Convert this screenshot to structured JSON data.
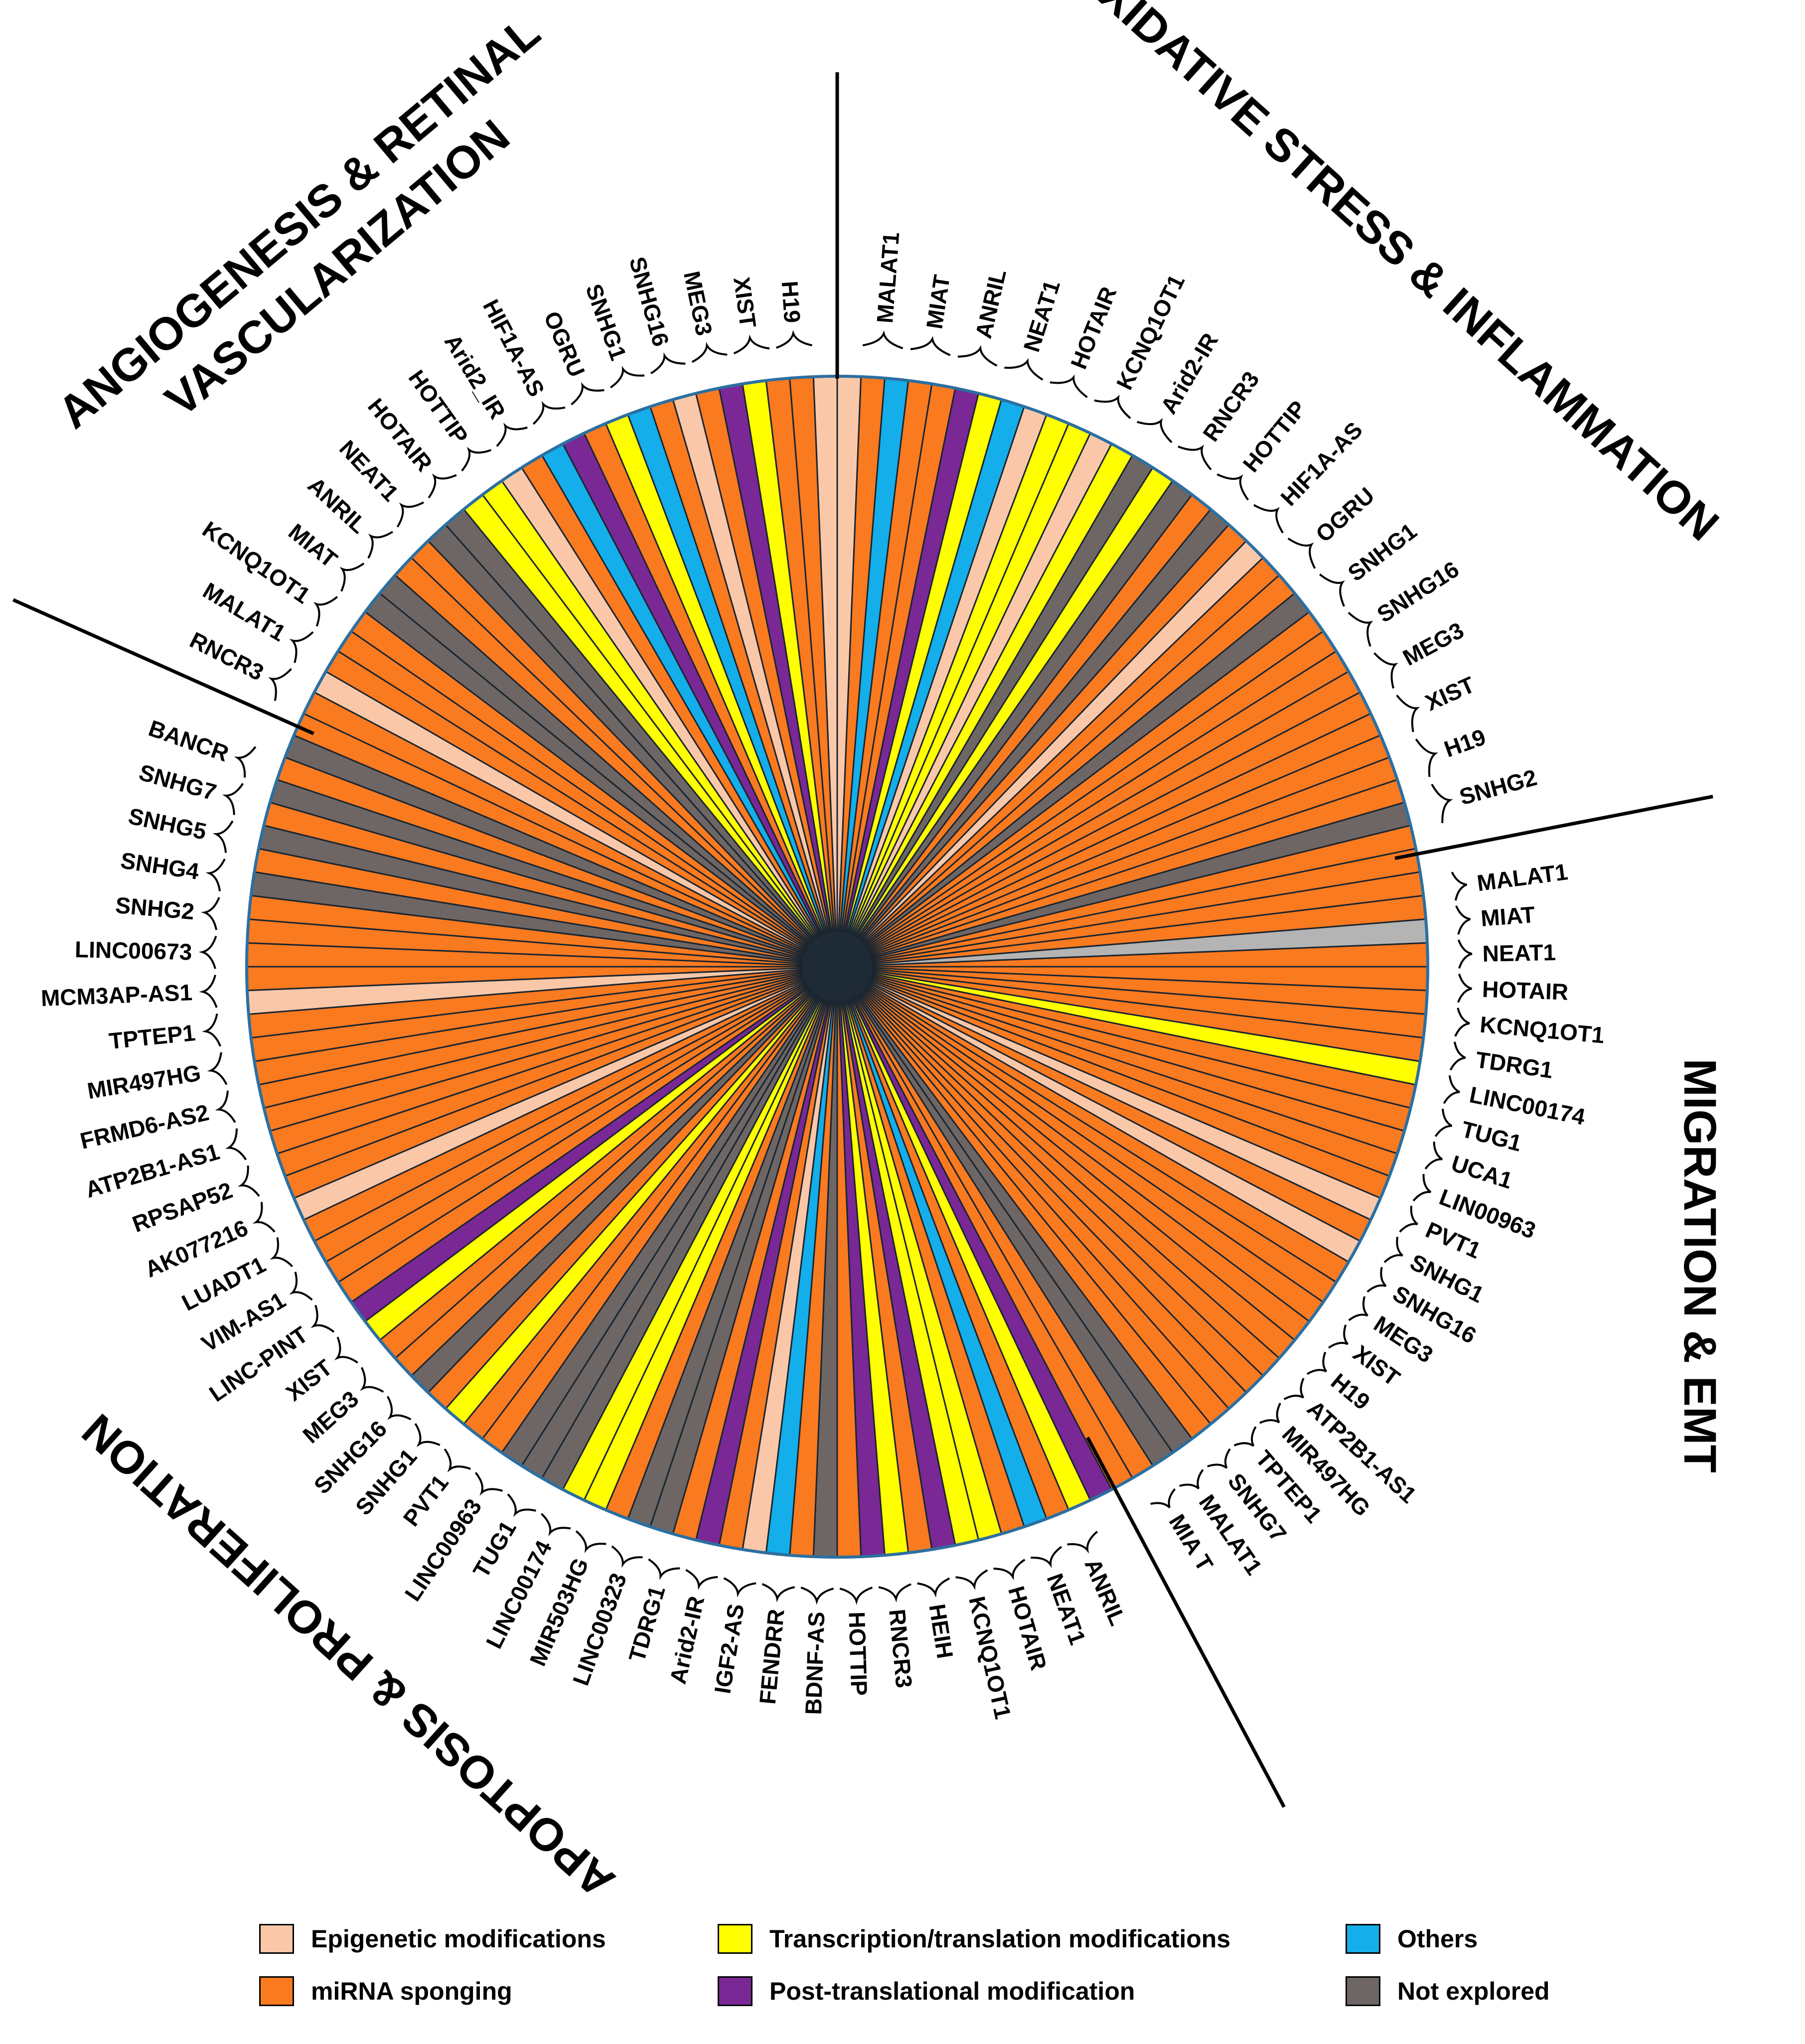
{
  "chart_data": {
    "type": "radial-segment-diagram",
    "sections": [
      {
        "title_lines": [
          "ANGIOGENESIS & RETINAL",
          "VASCULARIZATION"
        ],
        "genes": [
          "RNCR3",
          "MALAT1",
          "KCNQ1OT1",
          "MIAT",
          "ANRIL",
          "NEAT1",
          "HOTAIR",
          "HOTTIP",
          "Arid2_IR",
          "HIF1A-AS",
          "OGRU",
          "SNHG1",
          "SNHG16",
          "MEG3",
          "XIST",
          "H19"
        ]
      },
      {
        "title_lines": [
          "OXIDATIVE STRESS & INFLAMMATION"
        ],
        "genes": [
          "MALAT1",
          "MIAT",
          "ANRIL",
          "NEAT1",
          "HOTAIR",
          "KCNQ1OT1",
          "Arid2-IR",
          "RNCR3",
          "HOTTIP",
          "HIF1A-AS",
          "OGRU",
          "SNHG1",
          "SNHG16",
          "MEG3",
          "XIST",
          "H19",
          "SNHG2"
        ]
      },
      {
        "title_lines": [
          "MIGRATION & EMT"
        ],
        "genes": [
          "MALAT1",
          "MIAT",
          "NEAT1",
          "HOTAIR",
          "KCNQ1OT1",
          "TDRG1",
          "LINC00174",
          "TUG1",
          "UCA1",
          "LIN00963",
          "PVT1",
          "SNHG1",
          "SNHG16",
          "MEG3",
          "XIST",
          "H19",
          "ATP2B1-AS1",
          "MIR497HG",
          "TPTEP1",
          "SNHG7",
          "MALAT1",
          "MIA T"
        ]
      },
      {
        "title_lines": [
          "APOPTOSIS & PROLIFERATION"
        ],
        "genes": [
          "ANRIL",
          "NEAT1",
          "HOTAIR",
          "KCNQ1OT1",
          "HEIH",
          "RNCR3",
          "HOTTIP",
          "BDNF-AS",
          "FENDRR",
          "IGF2-AS",
          "Arid2-IR",
          "TDRG1",
          "LINC00323",
          "MIR503HG",
          "LINC00174",
          "TUG1",
          "LINC00963",
          "PVT1",
          "SNHG1",
          "SNHG16",
          "MEG3",
          "XIST",
          "LINC-PINT",
          "VIM-AS1",
          "LUADT1",
          "AK077216",
          "RPSAP52",
          "ATP2B1-AS1",
          "FRMD6-AS2",
          "MIR497HG",
          "TPTEP1",
          "MCM3AP-AS1",
          "LINC00673",
          "SNHG2",
          "SNHG4",
          "SNHG5",
          "SNHG7",
          "BANCR"
        ]
      }
    ],
    "segment_categories": [
      "epi",
      "mirna",
      "others",
      "mirna",
      "mirna",
      "ptm",
      "trans",
      "others",
      "epi",
      "trans",
      "trans",
      "epi",
      "trans",
      "none",
      "trans",
      "none",
      "mirna",
      "none",
      "mirna",
      "epi",
      "mirna",
      "mirna",
      "none",
      "mirna",
      "mirna",
      "mirna",
      "mirna",
      "mirna",
      "mirna",
      "mirna",
      "mirna",
      "mirna",
      "none",
      "mirna",
      "mirna",
      "mirna",
      "mirna",
      "grey",
      "mirna",
      "mirna",
      "mirna",
      "mirna",
      "mirna",
      "trans",
      "mirna",
      "mirna",
      "mirna",
      "mirna",
      "mirna",
      "epi",
      "mirna",
      "epi",
      "mirna",
      "mirna",
      "mirna",
      "mirna",
      "mirna",
      "mirna",
      "mirna",
      "mirna",
      "mirna",
      "mirna",
      "none",
      "none",
      "mirna",
      "mirna",
      "ptm",
      "trans",
      "mirna",
      "others",
      "mirna",
      "trans",
      "trans",
      "ptm",
      "mirna",
      "trans",
      "ptm",
      "mirna",
      "none",
      "mirna",
      "others",
      "epi",
      "mirna",
      "ptm",
      "mirna",
      "none",
      "none",
      "mirna",
      "trans",
      "trans",
      "none",
      "none",
      "none",
      "mirna",
      "mirna",
      "trans",
      "mirna",
      "none",
      "mirna",
      "mirna",
      "trans",
      "ptm",
      "mirna",
      "mirna",
      "mirna",
      "mirna",
      "epi",
      "mirna",
      "mirna",
      "mirna",
      "mirna",
      "mirna",
      "mirna",
      "mirna",
      "mirna",
      "epi",
      "mirna",
      "mirna",
      "mirna",
      "mirna",
      "none",
      "mirna",
      "none",
      "mirna",
      "none",
      "mirna",
      "none",
      "mirna",
      "mirna",
      "epi",
      "mirna",
      "mirna",
      "mirna",
      "none",
      "none",
      "mirna",
      "mirna",
      "none",
      "none",
      "trans",
      "trans",
      "epi",
      "mirna",
      "others",
      "ptm",
      "mirna",
      "trans",
      "others",
      "mirna",
      "epi",
      "mirna",
      "ptm",
      "trans",
      "mirna",
      "mirna",
      "epi"
    ],
    "colors": {
      "epi": "#FAC8A9",
      "mirna": "#FA7A20",
      "trans": "#FFFF00",
      "others": "#14AEEA",
      "ptm": "#7A2896",
      "none": "#6D6665",
      "grey": "#B4B4B4"
    },
    "legend": [
      {
        "key": "epi",
        "label": "Epigenetic modifications"
      },
      {
        "key": "trans",
        "label": "Transcription/translation modifications"
      },
      {
        "key": "others",
        "label": "Others"
      },
      {
        "key": "mirna",
        "label": "miRNA sponging"
      },
      {
        "key": "ptm",
        "label": "Post-translational modification"
      },
      {
        "key": "none",
        "label": "Not explored"
      }
    ]
  }
}
